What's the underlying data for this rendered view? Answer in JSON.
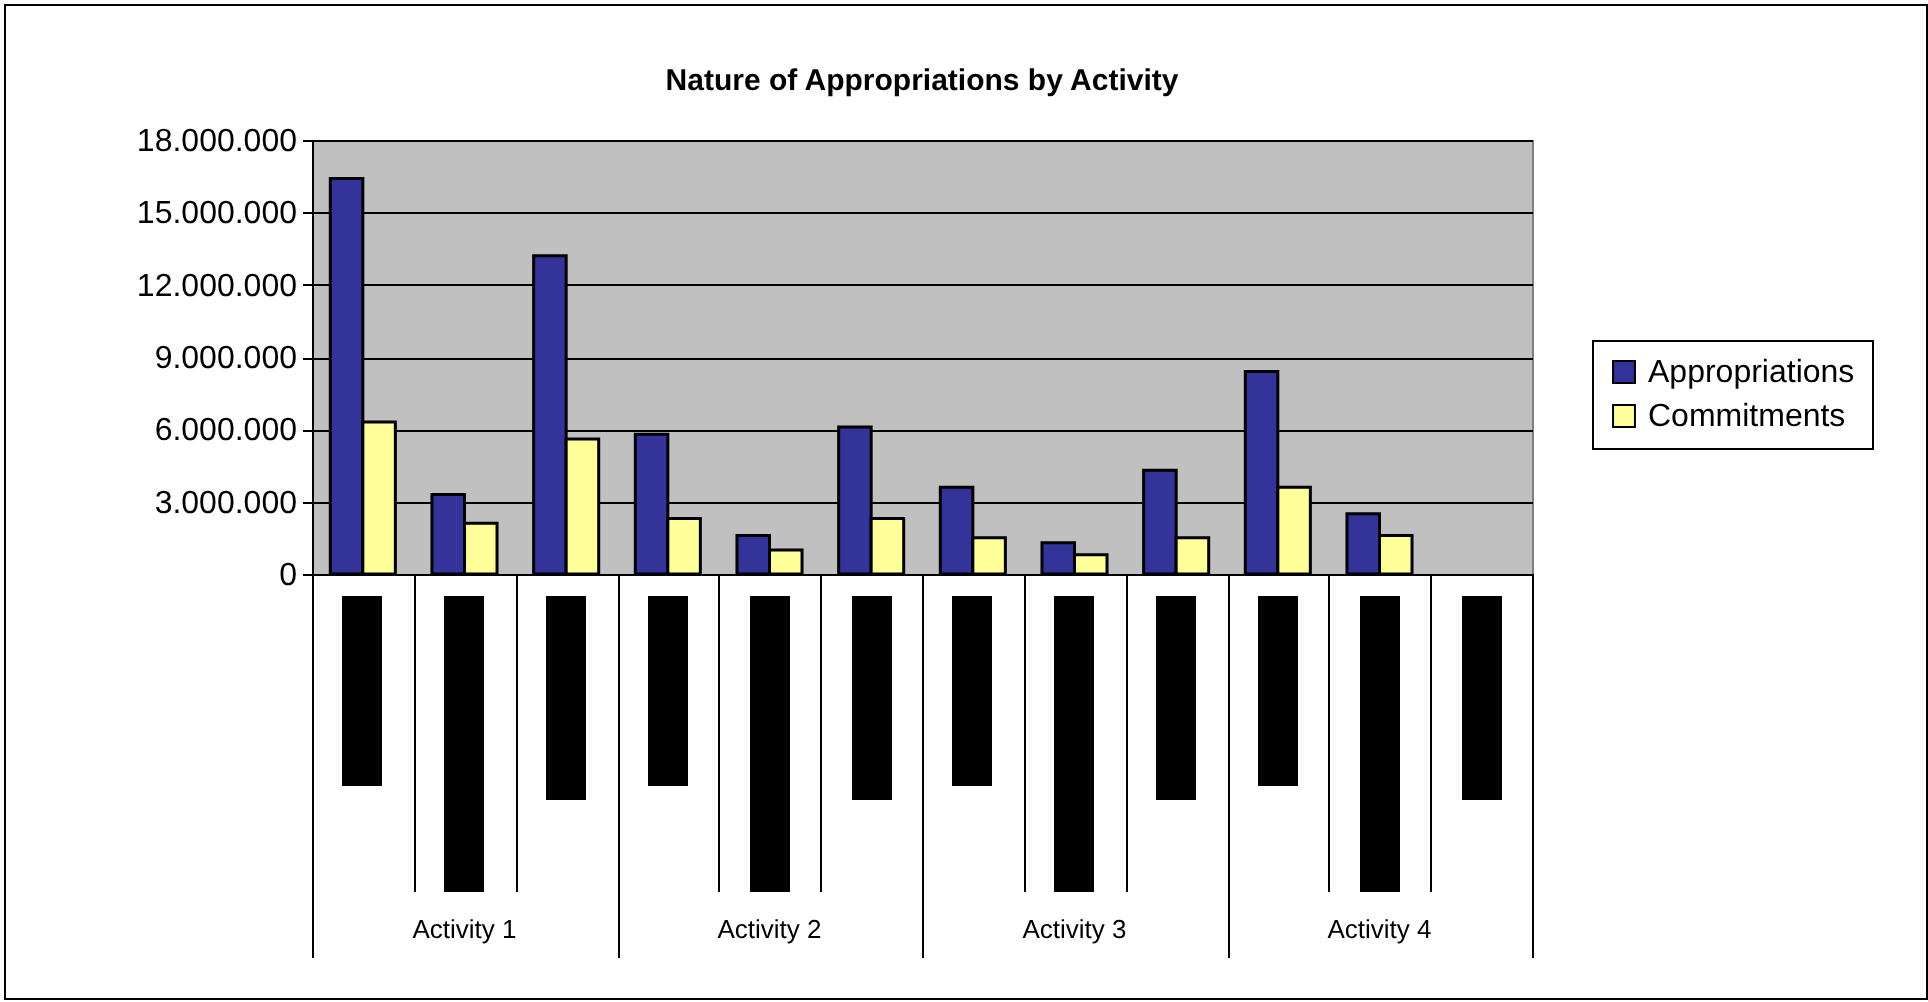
{
  "chart_data": {
    "type": "bar",
    "title": "Nature of Appropriations by Activity",
    "categories": [
      null,
      null,
      null,
      null,
      null,
      null,
      null,
      null,
      null,
      null,
      null,
      null
    ],
    "annotations": [
      "Activity 1",
      "Activity 2",
      "Activity 3",
      "Activity 4"
    ],
    "series": [
      {
        "name": "Appropriations",
        "color": "#333399",
        "values": [
          16400000,
          3300000,
          13200000,
          5800000,
          1600000,
          6100000,
          3600000,
          1300000,
          4300000,
          8400000,
          2500000,
          null
        ]
      },
      {
        "name": "Commitments",
        "color": "#ffff99",
        "values": [
          6300000,
          2100000,
          5600000,
          2300000,
          1000000,
          2300000,
          1500000,
          800000,
          1500000,
          3600000,
          1600000,
          null
        ]
      }
    ],
    "ylim": [
      0,
      18000000
    ],
    "yticks": [
      0,
      {
        "value": 3000000,
        "label": "3.000.000"
      },
      {
        "value": 6000000,
        "label": "6.000.000"
      },
      {
        "value": 9000000,
        "label": "9.000.000"
      },
      {
        "value": 12000000,
        "label": "12.000.000"
      },
      {
        "value": 15000000,
        "label": "15.000.000"
      },
      {
        "value": 18000000,
        "label": "18.000.000"
      }
    ],
    "grid": "y",
    "legend": "right",
    "tick_labels": "y"
  }
}
